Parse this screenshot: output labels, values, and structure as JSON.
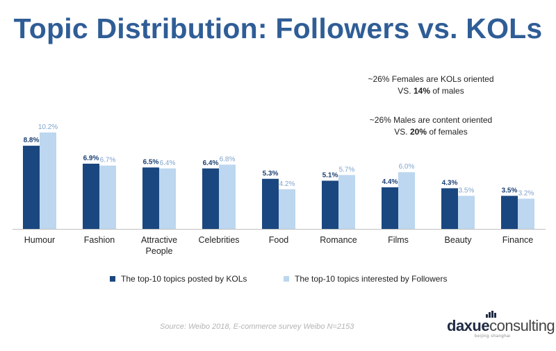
{
  "title": "Topic Distribution: Followers vs. KOLs",
  "notes": [
    {
      "line1": "~26% Females are KOLs oriented",
      "line2_prefix": "VS. ",
      "line2_bold": "14%",
      "line2_suffix": " of males"
    },
    {
      "line1": "~26% Males are content oriented",
      "line2_prefix": "VS. ",
      "line2_bold": "20%",
      "line2_suffix": " of females"
    }
  ],
  "chart_data": {
    "type": "bar",
    "categories": [
      "Humour",
      "Fashion",
      "Attractive People",
      "Celebrities",
      "Food",
      "Romance",
      "Films",
      "Beauty",
      "Finance"
    ],
    "series": [
      {
        "name": "The top-10 topics posted by KOLs",
        "values": [
          8.8,
          6.9,
          6.5,
          6.4,
          5.3,
          5.1,
          4.4,
          4.3,
          3.5
        ],
        "labels": [
          "8.8%",
          "6.9%",
          "6.5%",
          "6.4%",
          "5.3%",
          "5.1%",
          "4.4%",
          "4.3%",
          "3.5%"
        ],
        "color": "#1a477f"
      },
      {
        "name": "The top-10 topics interested by Followers",
        "values": [
          10.2,
          6.7,
          6.4,
          6.8,
          4.2,
          5.7,
          6.0,
          3.5,
          3.2
        ],
        "labels": [
          "10.2%",
          "6.7%",
          "6.4%",
          "6.8%",
          "4.2%",
          "5.7%",
          "6.0%",
          "3.5%",
          "3.2%"
        ],
        "color": "#bcd7ef"
      }
    ],
    "ylim": [
      0,
      10.2
    ],
    "legend_position": "bottom",
    "grid": false
  },
  "source": "Source: Weibo 2018, E-commerce survey Weibo N=2153",
  "logo": {
    "part1": "daxue",
    "part2": "consulting",
    "sub": "beijing·shanghai"
  }
}
